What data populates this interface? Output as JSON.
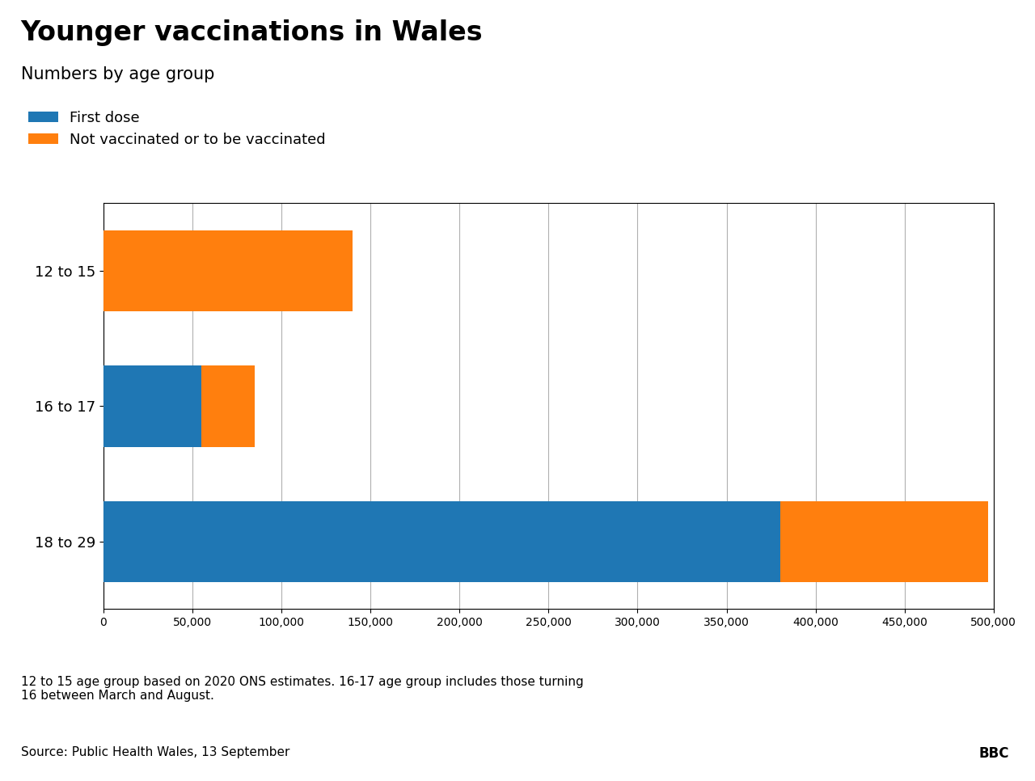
{
  "chart_data": {
    "type": "bar",
    "orientation": "horizontal",
    "stacked": true,
    "title": "Younger vaccinations in Wales",
    "subtitle": "Numbers by age group",
    "categories": [
      "18 to 29",
      "16 to 17",
      "12 to 15"
    ],
    "series": [
      {
        "name": "First dose",
        "values": [
          380000,
          55000,
          0
        ]
      },
      {
        "name": "Not vaccinated or to be vaccinated",
        "values": [
          117000,
          30000,
          140000
        ]
      }
    ],
    "xlim": [
      0,
      500000
    ],
    "xticks": [
      0,
      {
        "value": 50000,
        "label": "50,000"
      },
      {
        "value": 100000,
        "label": "100,000"
      },
      {
        "value": 150000,
        "label": "150,000"
      },
      {
        "value": 200000,
        "label": "200,000"
      },
      {
        "value": 250000,
        "label": "250,000"
      },
      {
        "value": 300000,
        "label": "300,000"
      },
      {
        "value": 350000,
        "label": "350,000"
      },
      {
        "value": 400000,
        "label": "400,000"
      },
      {
        "value": 450000,
        "label": "450,000"
      },
      {
        "value": 500000,
        "label": "500,000"
      }
    ],
    "grid": "x",
    "legend": "upper left",
    "footnote": "12 to 15 age group based on 2020 ONS estimates. 16-17 age group includes those turning\n16 between March and August.",
    "source": "Source: Public Health Wales, 13 September",
    "logo": "BBC"
  }
}
